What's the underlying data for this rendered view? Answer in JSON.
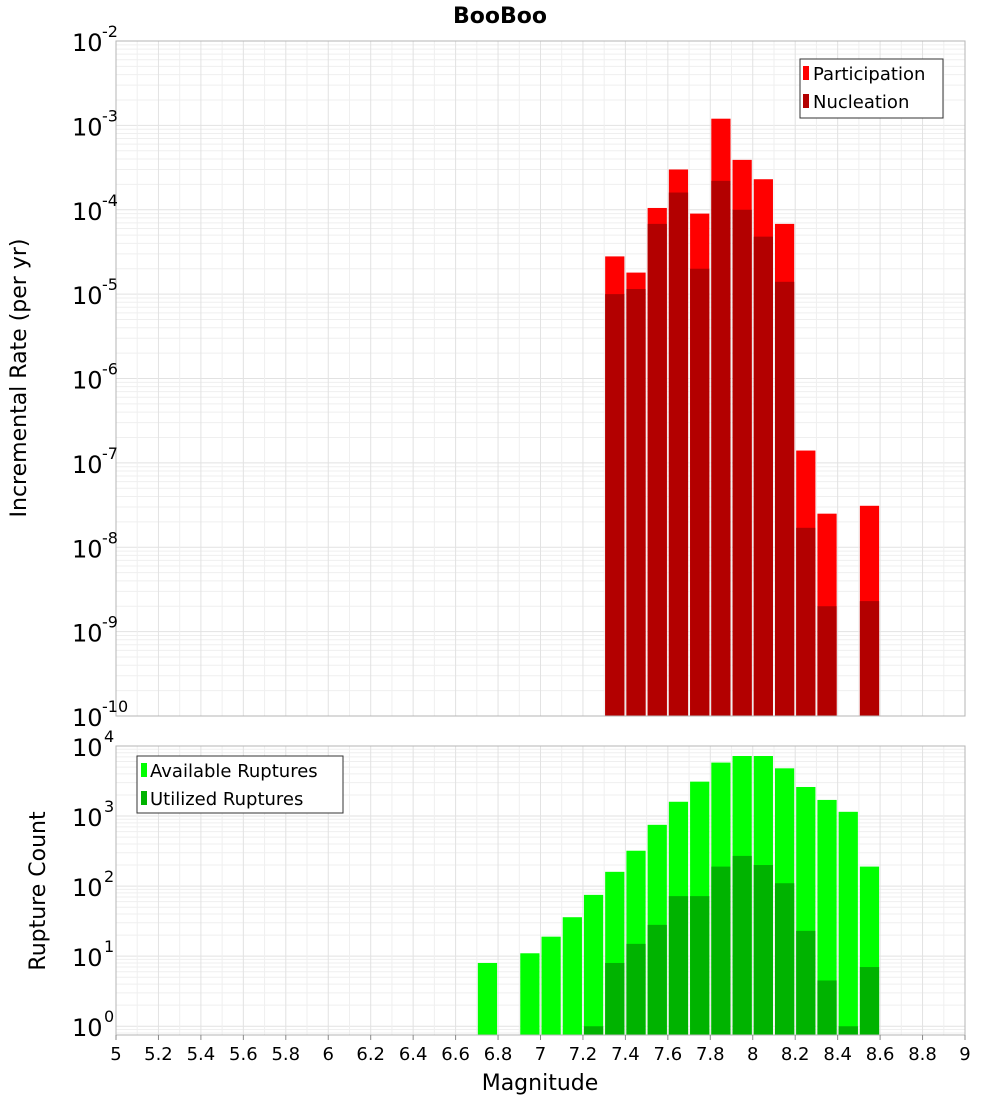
{
  "title": "BooBoo",
  "xlabel": "Magnitude",
  "colors": {
    "participation": "#ff0000",
    "nucleation": "#b30000",
    "available": "#00ff00",
    "utilized": "#00b300"
  },
  "chart_data": [
    {
      "type": "bar",
      "panel": "top",
      "ylabel": "Incremental Rate (per yr)",
      "yscale": "log",
      "xlim": [
        5,
        9
      ],
      "ylim": [
        1e-10,
        0.01
      ],
      "y_tick_exponents": [
        -10,
        -9,
        -8,
        -7,
        -6,
        -5,
        -4,
        -3,
        -2
      ],
      "grid": true,
      "legend": "top-right",
      "x": [
        7.35,
        7.45,
        7.55,
        7.65,
        7.75,
        7.85,
        7.95,
        8.05,
        8.15,
        8.25,
        8.35,
        8.45,
        8.55
      ],
      "series": [
        {
          "name": "Participation",
          "values": [
            2.8e-05,
            1.8e-05,
            0.000105,
            0.0003,
            9e-05,
            0.0012,
            0.00039,
            0.00023,
            6.8e-05,
            1.4e-07,
            2.5e-08,
            null,
            3.1e-08
          ]
        },
        {
          "name": "Nucleation",
          "values": [
            1e-05,
            1.15e-05,
            6.8e-05,
            0.00016,
            2e-05,
            0.00022,
            0.0001,
            4.8e-05,
            1.4e-05,
            1.7e-08,
            2e-09,
            null,
            2.3e-09
          ]
        }
      ]
    },
    {
      "type": "bar",
      "panel": "bottom",
      "ylabel": "Rupture Count",
      "yscale": "log",
      "xlim": [
        5,
        9
      ],
      "ylim": [
        0.75,
        10000
      ],
      "y_tick_exponents": [
        0,
        1,
        2,
        3,
        4
      ],
      "x_ticks": [
        "5",
        "5.2",
        "5.4",
        "5.6",
        "5.8",
        "6",
        "6.2",
        "6.4",
        "6.6",
        "6.8",
        "7",
        "7.2",
        "7.4",
        "7.6",
        "7.8",
        "8",
        "8.2",
        "8.4",
        "8.6",
        "8.8",
        "9"
      ],
      "grid": true,
      "legend": "top-left",
      "x": [
        6.75,
        6.85,
        6.95,
        7.05,
        7.15,
        7.25,
        7.35,
        7.45,
        7.55,
        7.65,
        7.75,
        7.85,
        7.95,
        8.05,
        8.15,
        8.25,
        8.35,
        8.45,
        8.55
      ],
      "series": [
        {
          "name": "Available Ruptures",
          "values": [
            8,
            null,
            11,
            19,
            36,
            75,
            160,
            320,
            750,
            1600,
            3100,
            5800,
            7200,
            7200,
            4800,
            2600,
            1700,
            1150,
            190
          ]
        },
        {
          "name": "Utilized Ruptures",
          "values": [
            null,
            null,
            null,
            null,
            null,
            1,
            8,
            15,
            28,
            72,
            72,
            190,
            270,
            200,
            110,
            23,
            4.5,
            1,
            7
          ]
        }
      ]
    }
  ]
}
